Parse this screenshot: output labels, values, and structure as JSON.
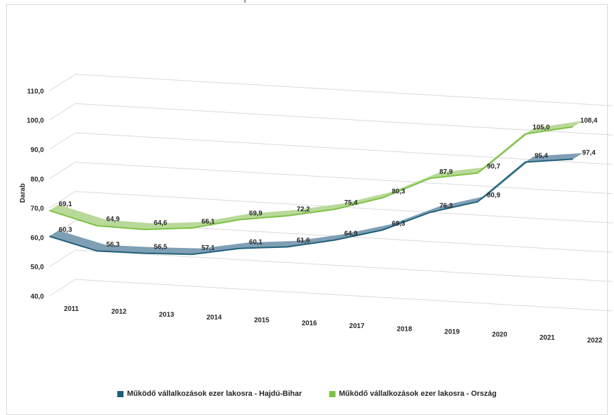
{
  "chart_data": {
    "type": "line",
    "title": "",
    "xlabel": "",
    "ylabel": "Darab",
    "categories": [
      "2011",
      "2012",
      "2013",
      "2014",
      "2015",
      "2016",
      "2017",
      "2018",
      "2019",
      "2020",
      "2021",
      "2022"
    ],
    "y_ticks": [
      "40,0",
      "50,0",
      "60,0",
      "70,0",
      "80,0",
      "90,0",
      "100,0",
      "110,0"
    ],
    "ylim": [
      40,
      110
    ],
    "grid": true,
    "legend_position": "bottom",
    "series": [
      {
        "name": "Működő vállalkozások ezer lakosra - Hajdú-Bihar",
        "values": [
          60.3,
          56.3,
          56.5,
          57.1,
          60.1,
          61.6,
          64.9,
          69.3,
          76.3,
          80.9,
          95.4,
          97.4
        ],
        "labels": [
          "60,3",
          "56,3",
          "56,5",
          "57,1",
          "60,1",
          "61,6",
          "64,9",
          "69,3",
          "76,3",
          "80,9",
          "95,4",
          "97,4"
        ],
        "color": "#1f5f7a",
        "ribbon_color": "#7f9fb5"
      },
      {
        "name": "Működő vállalkozások ezer lakosra - Ország",
        "values": [
          69.1,
          64.9,
          64.6,
          66.1,
          69.9,
          72.2,
          75.4,
          80.3,
          87.9,
          90.7,
          105.0,
          108.4
        ],
        "labels": [
          "69,1",
          "64,9",
          "64,6",
          "66,1",
          "69,9",
          "72,2",
          "75,4",
          "80,3",
          "87,9",
          "90,7",
          "105,0",
          "108,4"
        ],
        "color": "#7cc242",
        "ribbon_color": "#b9d99a"
      }
    ]
  }
}
